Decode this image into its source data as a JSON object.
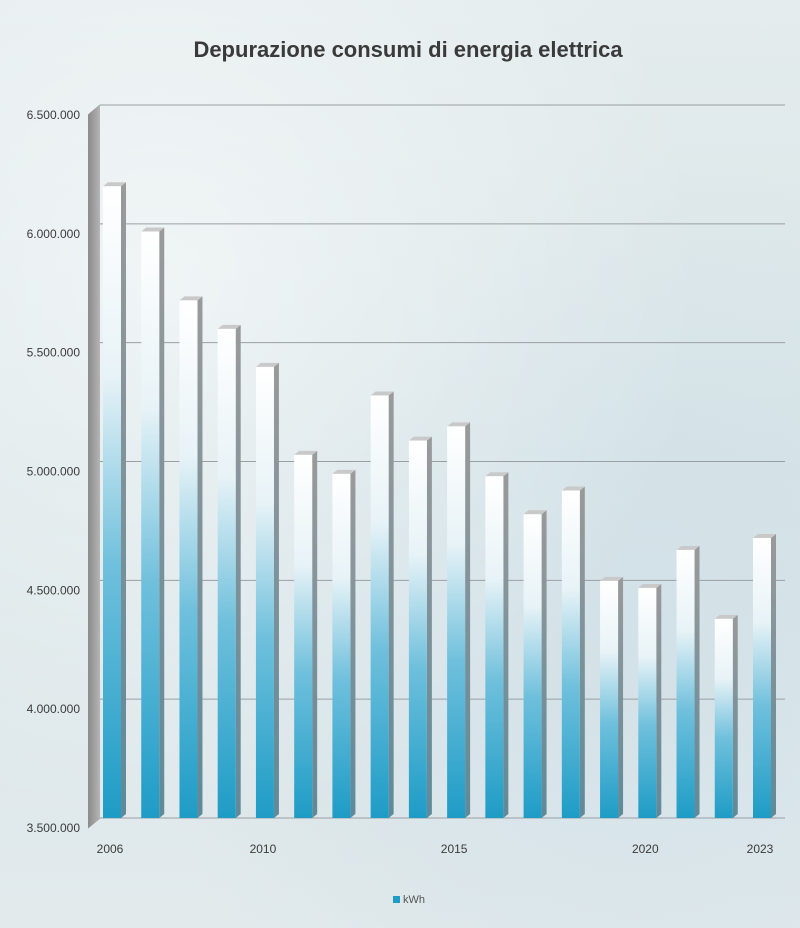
{
  "chart_data": {
    "type": "bar",
    "title": "Depurazione consumi di energia elettrica",
    "xlabel": "",
    "ylabel": "",
    "ylim": [
      3500000,
      6500000
    ],
    "yticks": [
      "3.500.000",
      "4.000.000",
      "4.500.000",
      "5.000.000",
      "5.500.000",
      "6.000.000",
      "6.500.000"
    ],
    "categories": [
      "2006",
      "2007",
      "2008",
      "2009",
      "2010",
      "2011",
      "2012",
      "2013",
      "2014",
      "2015",
      "2016",
      "2017",
      "2018",
      "2019",
      "2020",
      "2021",
      "2022",
      "2023"
    ],
    "xtick_labels": [
      "2006",
      "",
      "",
      "",
      "2010",
      "",
      "",
      "",
      "",
      "2015",
      "",
      "",
      "",
      "",
      "2020",
      "",
      "",
      "2023"
    ],
    "legend": [
      "kWh"
    ],
    "legend_position": "bottom",
    "grid": true,
    "bar_style": "3d-gradient",
    "series": [
      {
        "name": "kWh",
        "color": "#1e9cc6",
        "values": [
          6200000,
          6010000,
          5720000,
          5600000,
          5440000,
          5070000,
          4990000,
          5320000,
          5130000,
          5190000,
          4980000,
          4820000,
          4920000,
          4540000,
          4510000,
          4670000,
          4380000,
          4720000
        ]
      }
    ]
  }
}
